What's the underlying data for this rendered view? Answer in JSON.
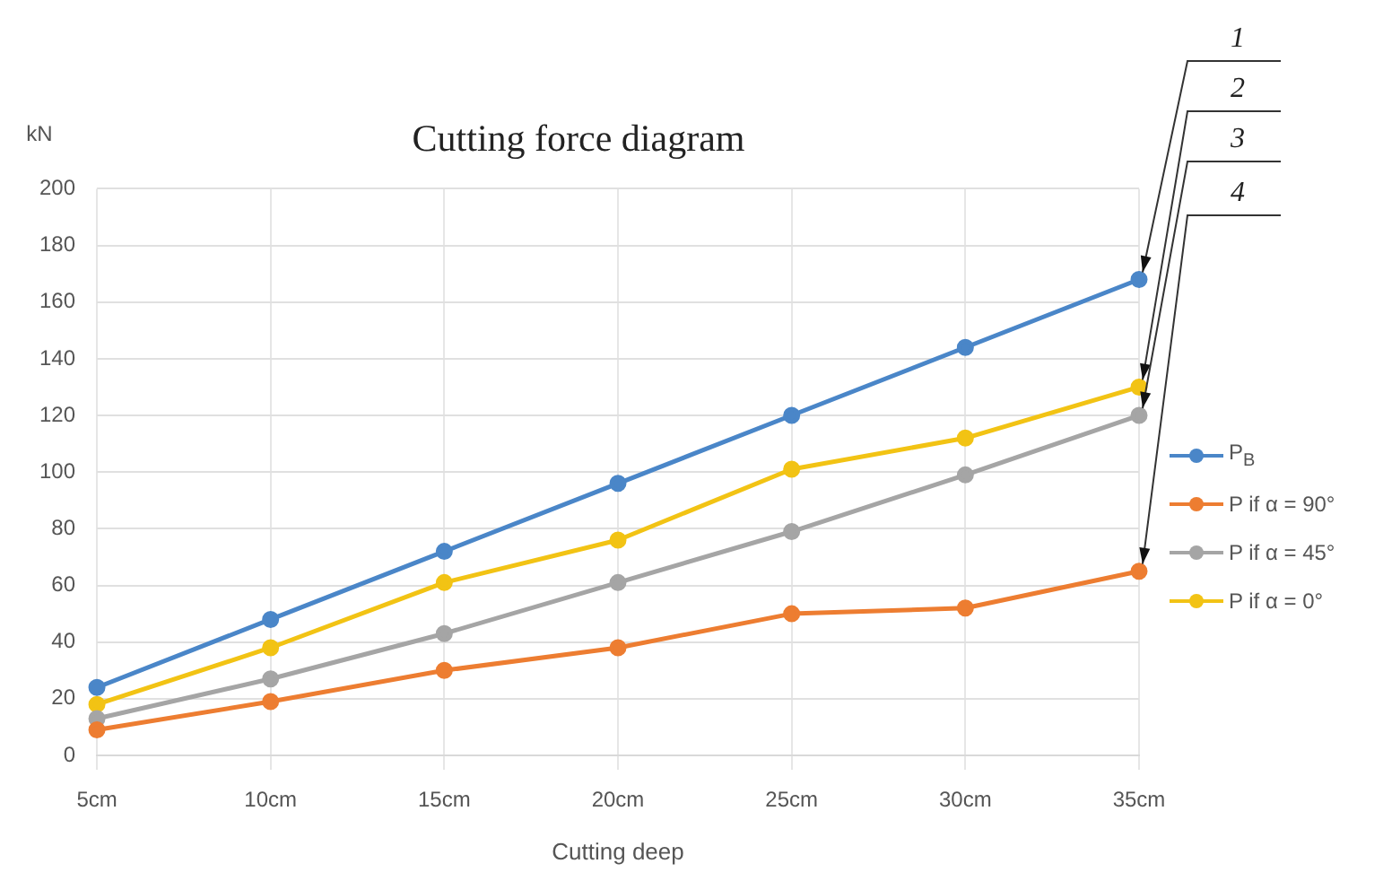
{
  "chart_data": {
    "type": "line",
    "title": "Cutting force diagram",
    "xlabel": "Cutting deep",
    "ylabel": "kN",
    "categories": [
      "5cm",
      "10cm",
      "15cm",
      "20cm",
      "25cm",
      "30cm",
      "35cm"
    ],
    "series": [
      {
        "name": "P$_{B}$",
        "color": "#4a86c8",
        "values": [
          24,
          48,
          72,
          96,
          120,
          144,
          168
        ]
      },
      {
        "name": "P if α = 90°",
        "color": "#ed7d31",
        "values": [
          9,
          19,
          30,
          38,
          50,
          52,
          65
        ]
      },
      {
        "name": "P if α = 45°",
        "color": "#a5a5a5",
        "values": [
          13,
          27,
          43,
          61,
          79,
          99,
          120
        ]
      },
      {
        "name": "P if α = 0°",
        "color": "#f2c314",
        "values": [
          18,
          38,
          61,
          76,
          101,
          112,
          130
        ]
      }
    ],
    "ylim": [
      0,
      200
    ],
    "yticks": [
      0,
      20,
      40,
      60,
      80,
      100,
      120,
      140,
      160,
      180,
      200
    ],
    "annotations": [
      "1",
      "2",
      "3",
      "4"
    ],
    "grid": true,
    "legend": "right",
    "marker": "circle",
    "line_style": "solid"
  }
}
